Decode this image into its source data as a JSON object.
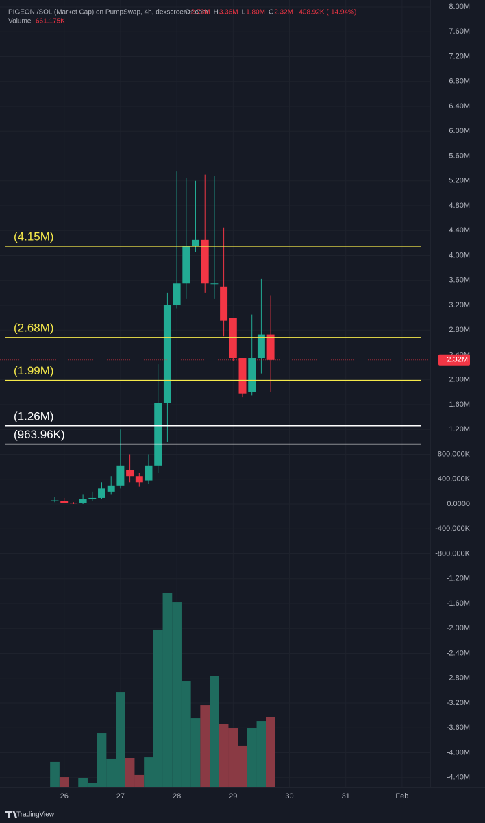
{
  "chart_data": {
    "type": "candlestick",
    "header": {
      "title": "PIGEON /SOL (Market Cap) on PumpSwap, 4h, dexscreener.com",
      "o_label": "O",
      "o": "2.73M",
      "h_label": "H",
      "h": "3.36M",
      "l_label": "L",
      "l": "1.80M",
      "c_label": "C",
      "c": "2.32M",
      "change": "-408.92K (-14.94%)",
      "volume_label": "Volume",
      "volume": "661.175K"
    },
    "open": [
      0.05,
      0.05,
      0.02,
      0.02,
      0.08,
      0.1,
      0.2,
      0.3,
      0.55,
      0.45,
      0.38,
      0.62,
      1.63,
      3.2,
      3.55,
      4.15,
      4.25,
      3.55,
      3.5,
      3.0,
      2.35,
      1.8,
      2.35,
      2.73
    ],
    "high": [
      0.12,
      0.1,
      0.03,
      0.15,
      0.2,
      0.35,
      0.45,
      1.2,
      0.8,
      0.5,
      0.8,
      2.25,
      3.4,
      5.35,
      5.25,
      5.2,
      5.3,
      5.28,
      4.45,
      3.0,
      2.35,
      3.05,
      3.62,
      3.36
    ],
    "low": [
      0.03,
      0.01,
      0.0,
      0.0,
      0.05,
      0.08,
      0.15,
      0.25,
      0.35,
      0.28,
      0.33,
      0.5,
      1.0,
      3.15,
      3.3,
      4.05,
      3.4,
      3.3,
      2.7,
      2.3,
      1.72,
      1.75,
      2.1,
      1.8
    ],
    "close": [
      0.06,
      0.02,
      0.01,
      0.08,
      0.1,
      0.25,
      0.3,
      0.62,
      0.45,
      0.35,
      0.62,
      1.63,
      3.2,
      3.55,
      4.15,
      4.25,
      3.55,
      3.55,
      2.95,
      2.35,
      1.78,
      2.35,
      2.73,
      2.32
    ],
    "volume": [
      238,
      96,
      6,
      90,
      39,
      507,
      270,
      892,
      276,
      116,
      282,
      1477,
      1817,
      1733,
      995,
      648,
      770,
      1046,
      597,
      552,
      392,
      552,
      616,
      661.175
    ],
    "up_color": "#22ab94",
    "down_color": "#f23645",
    "volume_up_color": "#1f6b5e",
    "volume_down_color": "#8a3a44",
    "xlim": [
      -5.84,
      40
    ],
    "xticks": [
      {
        "value": 1,
        "label": "26"
      },
      {
        "value": 7,
        "label": "27"
      },
      {
        "value": 13,
        "label": "28"
      },
      {
        "value": 19,
        "label": "29"
      },
      {
        "value": 25,
        "label": "30"
      },
      {
        "value": 31,
        "label": "31"
      },
      {
        "value": 37,
        "label": "Feb"
      }
    ],
    "ylim": [
      -4.557,
      8.11
    ],
    "volume_ylim": [
      0,
      7370
    ],
    "yticks": [
      {
        "value": 8,
        "label": "8.00M"
      },
      {
        "value": 7.6,
        "label": "7.60M"
      },
      {
        "value": 7.2,
        "label": "7.20M"
      },
      {
        "value": 6.8,
        "label": "6.80M"
      },
      {
        "value": 6.4,
        "label": "6.40M"
      },
      {
        "value": 6,
        "label": "6.00M"
      },
      {
        "value": 5.6,
        "label": "5.60M"
      },
      {
        "value": 5.2,
        "label": "5.20M"
      },
      {
        "value": 4.8,
        "label": "4.80M"
      },
      {
        "value": 4.4,
        "label": "4.40M"
      },
      {
        "value": 4,
        "label": "4.00M"
      },
      {
        "value": 3.6,
        "label": "3.60M"
      },
      {
        "value": 3.2,
        "label": "3.20M"
      },
      {
        "value": 2.8,
        "label": "2.80M"
      },
      {
        "value": 2.4,
        "label": "2.40M"
      },
      {
        "value": 2,
        "label": "2.00M"
      },
      {
        "value": 1.6,
        "label": "1.60M"
      },
      {
        "value": 1.2,
        "label": "1.20M"
      },
      {
        "value": 0.8,
        "label": "800.000K"
      },
      {
        "value": 0.4,
        "label": "400.000K"
      },
      {
        "value": 0,
        "label": "0.0000"
      },
      {
        "value": -0.4,
        "label": "-400.000K"
      },
      {
        "value": -0.8,
        "label": "-800.000K"
      },
      {
        "value": -1.2,
        "label": "-1.20M"
      },
      {
        "value": -1.6,
        "label": "-1.60M"
      },
      {
        "value": -2,
        "label": "-2.00M"
      },
      {
        "value": -2.4,
        "label": "-2.40M"
      },
      {
        "value": -2.8,
        "label": "-2.80M"
      },
      {
        "value": -3.2,
        "label": "-3.20M"
      },
      {
        "value": -3.6,
        "label": "-3.60M"
      },
      {
        "value": -4,
        "label": "-4.00M"
      },
      {
        "value": -4.4,
        "label": "-4.40M"
      }
    ],
    "grid": true,
    "hlines": [
      {
        "value": 4.15,
        "label": "(4.15M)",
        "color": "#f5e94a"
      },
      {
        "value": 2.68,
        "label": "(2.68M)",
        "color": "#f5e94a"
      },
      {
        "value": 1.99,
        "label": "(1.99M)",
        "color": "#f5e94a"
      },
      {
        "value": 1.26,
        "label": "(1.26M)",
        "color": "#ffffff"
      },
      {
        "value": 0.96396,
        "label": "(963.96K)",
        "color": "#ffffff"
      }
    ],
    "last_price": 2.32,
    "last_price_label": "2.32M",
    "last_price_color": "#f23645",
    "brand": "TradingView"
  }
}
